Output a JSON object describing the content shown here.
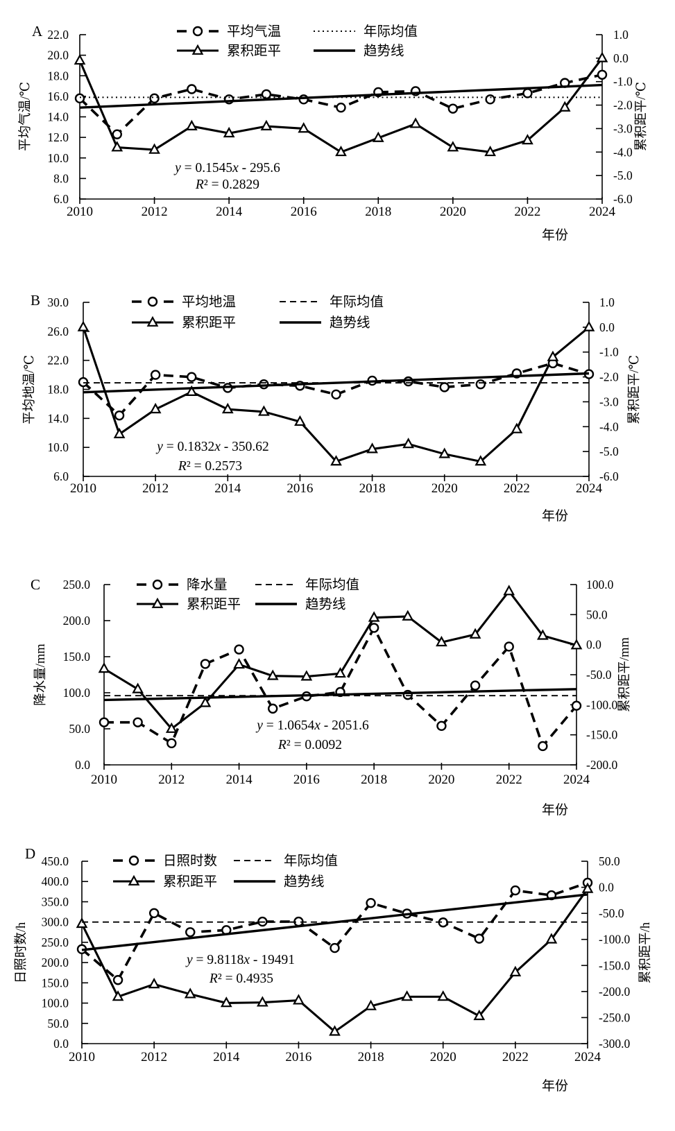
{
  "page": {
    "background": "#ffffff",
    "ink": "#000000"
  },
  "chart_data": [
    {
      "type": "line",
      "panel": "A",
      "years": [
        2010,
        2011,
        2012,
        2013,
        2014,
        2015,
        2016,
        2017,
        2018,
        2019,
        2020,
        2021,
        2022,
        2023,
        2024
      ],
      "legend": [
        "平均气温",
        "年际均值",
        "累积距平",
        "趋势线"
      ],
      "left_axis": {
        "label": "平均气温/℃",
        "min": 6,
        "max": 22,
        "step": 2,
        "tick_labels": [
          "22.0",
          "20.0",
          "18.0",
          "16.0",
          "14.0",
          "12.0",
          "10.0",
          "8.0",
          "6.0"
        ]
      },
      "right_axis": {
        "label": "累积距平/℃",
        "min": -6,
        "max": 1,
        "step": 1,
        "tick_labels": [
          "1.0",
          "0.0",
          "-1.0",
          "-2.0",
          "-3.0",
          "-4.0",
          "-5.0",
          "-6.0"
        ]
      },
      "x_axis": {
        "label": "年份",
        "min": 2010,
        "max": 2024,
        "tick_labels": [
          "2010",
          "2012",
          "2014",
          "2016",
          "2018",
          "2020",
          "2022",
          "2024"
        ]
      },
      "series": [
        {
          "name": "平均气温",
          "role": "main",
          "axis": "left",
          "style": "dash-circle",
          "values": [
            15.8,
            12.3,
            15.8,
            16.7,
            15.7,
            16.2,
            15.7,
            14.9,
            16.4,
            16.5,
            14.8,
            15.7,
            16.3,
            17.3,
            18.1
          ]
        },
        {
          "name": "年际均值",
          "role": "mean",
          "axis": "left",
          "style": "dotted",
          "value": 15.9
        },
        {
          "name": "累积距平",
          "role": "cum",
          "axis": "right",
          "style": "solid-triangle",
          "values": [
            -0.1,
            -3.8,
            -3.9,
            -2.9,
            -3.2,
            -2.9,
            -3.0,
            -4.0,
            -3.4,
            -2.8,
            -3.8,
            -4.0,
            -3.5,
            -2.1,
            0.0
          ]
        },
        {
          "name": "趋势线",
          "role": "trend",
          "axis": "left",
          "style": "solid",
          "start": 14.9,
          "end": 17.1
        }
      ],
      "equation": "y = 0.1545x - 295.6",
      "r_squared": "R² = 0.2829"
    },
    {
      "type": "line",
      "panel": "B",
      "years": [
        2010,
        2011,
        2012,
        2013,
        2014,
        2015,
        2016,
        2017,
        2018,
        2019,
        2020,
        2021,
        2022,
        2023,
        2024
      ],
      "legend": [
        "平均地温",
        "年际均值",
        "累积距平",
        "趋势线"
      ],
      "left_axis": {
        "label": "平均地温/℃",
        "min": 6,
        "max": 30,
        "step": 4,
        "tick_labels": [
          "30.0",
          "26.0",
          "22.0",
          "18.0",
          "14.0",
          "10.0",
          "6.0"
        ]
      },
      "right_axis": {
        "label": "累积距平/℃",
        "min": -6,
        "max": 1,
        "step": 1,
        "tick_labels": [
          "1.0",
          "0.0",
          "-1.0",
          "-2.0",
          "-3.0",
          "-4.0",
          "-5.0",
          "-6.0"
        ]
      },
      "x_axis": {
        "label": "年份",
        "min": 2010,
        "max": 2024,
        "tick_labels": [
          "2010",
          "2012",
          "2014",
          "2016",
          "2018",
          "2020",
          "2022",
          "2024"
        ]
      },
      "series": [
        {
          "name": "平均地温",
          "role": "main",
          "axis": "left",
          "style": "dash-circle",
          "values": [
            19.0,
            14.4,
            20.0,
            19.7,
            18.2,
            18.7,
            18.5,
            17.3,
            19.2,
            19.1,
            18.3,
            18.7,
            20.2,
            21.6,
            20.1
          ]
        },
        {
          "name": "年际均值",
          "role": "mean",
          "axis": "left",
          "style": "dashed",
          "value": 18.9
        },
        {
          "name": "累积距平",
          "role": "cum",
          "axis": "right",
          "style": "solid-triangle",
          "values": [
            0.0,
            -4.3,
            -3.3,
            -2.6,
            -3.3,
            -3.4,
            -3.8,
            -5.4,
            -4.9,
            -4.7,
            -5.1,
            -5.4,
            -4.1,
            -1.2,
            0.0
          ]
        },
        {
          "name": "趋势线",
          "role": "trend",
          "axis": "left",
          "style": "solid",
          "start": 17.6,
          "end": 20.2
        }
      ],
      "equation": "y = 0.1832x - 350.62",
      "r_squared": "R² = 0.2573"
    },
    {
      "type": "line",
      "panel": "C",
      "years": [
        2010,
        2011,
        2012,
        2013,
        2014,
        2015,
        2016,
        2017,
        2018,
        2019,
        2020,
        2021,
        2022,
        2023,
        2024
      ],
      "legend": [
        "降水量",
        "年际均值",
        "累积距平",
        "趋势线"
      ],
      "left_axis": {
        "label": "降水量/mm",
        "min": 0,
        "max": 250,
        "step": 50,
        "tick_labels": [
          "250.0",
          "200.0",
          "150.0",
          "100.0",
          "50.0",
          "0.0"
        ]
      },
      "right_axis": {
        "label": "累积距平/mm",
        "min": -200,
        "max": 100,
        "step": 50,
        "tick_labels": [
          "100.0",
          "50.0",
          "0.0",
          "-50.0",
          "-100.0",
          "-150.0",
          "-200.0"
        ]
      },
      "x_axis": {
        "label": "年份",
        "min": 2010,
        "max": 2024,
        "tick_labels": [
          "2010",
          "2012",
          "2014",
          "2016",
          "2018",
          "2020",
          "2022",
          "2024"
        ]
      },
      "series": [
        {
          "name": "降水量",
          "role": "main",
          "axis": "left",
          "style": "dash-circle",
          "values": [
            59,
            59,
            30,
            140,
            160,
            78,
            95,
            101,
            190,
            97,
            54,
            110,
            164,
            26,
            82
          ]
        },
        {
          "name": "年际均值",
          "role": "mean",
          "axis": "left",
          "style": "dashed",
          "value": 96
        },
        {
          "name": "累积距平",
          "role": "cum",
          "axis": "right",
          "style": "solid-triangle",
          "values": [
            -40,
            -74,
            -140,
            -97,
            -33,
            -52,
            -53,
            -48,
            45,
            47,
            4,
            17,
            89,
            15,
            -1
          ]
        },
        {
          "name": "趋势线",
          "role": "trend",
          "axis": "left",
          "style": "solid",
          "start": 90,
          "end": 105
        }
      ],
      "equation": "y = 1.0654x - 2051.6",
      "r_squared": "R² = 0.0092"
    },
    {
      "type": "line",
      "panel": "D",
      "years": [
        2010,
        2011,
        2012,
        2013,
        2014,
        2015,
        2016,
        2017,
        2018,
        2019,
        2020,
        2021,
        2022,
        2023,
        2024
      ],
      "legend": [
        "日照时数",
        "年际均值",
        "累积距平",
        "趋势线"
      ],
      "left_axis": {
        "label": "日照时数/h",
        "min": 0,
        "max": 450,
        "step": 50,
        "tick_labels": [
          "450.0",
          "400.0",
          "350.0",
          "300.0",
          "250.0",
          "200.0",
          "150.0",
          "100.0",
          "50.0",
          "0.0"
        ]
      },
      "right_axis": {
        "label": "累积距平/h",
        "min": -300,
        "max": 50,
        "step": 50,
        "tick_labels": [
          "50.0",
          "0.0",
          "-50.0",
          "-100.0",
          "-150.0",
          "-200.0",
          "-250.0",
          "-300.0"
        ]
      },
      "x_axis": {
        "label": "年份",
        "min": 2010,
        "max": 2024,
        "tick_labels": [
          "2010",
          "2012",
          "2014",
          "2016",
          "2018",
          "2020",
          "2022",
          "2024"
        ]
      },
      "series": [
        {
          "name": "日照时数",
          "role": "main",
          "axis": "left",
          "style": "dash-circle",
          "values": [
            233,
            157,
            322,
            275,
            280,
            301,
            301,
            236,
            347,
            321,
            299,
            259,
            378,
            366,
            397
          ]
        },
        {
          "name": "年际均值",
          "role": "mean",
          "axis": "left",
          "style": "dashed",
          "value": 300
        },
        {
          "name": "累积距平",
          "role": "cum",
          "axis": "right",
          "style": "solid-triangle",
          "values": [
            -70,
            -210,
            -186,
            -205,
            -222,
            -221,
            -217,
            -277,
            -228,
            -210,
            -210,
            -247,
            -163,
            -100,
            -3
          ]
        },
        {
          "name": "趋势线",
          "role": "trend",
          "axis": "left",
          "style": "solid",
          "start": 231,
          "end": 368
        }
      ],
      "equation": "y = 9.8118x - 19491",
      "r_squared": "R² = 0.4935"
    }
  ]
}
